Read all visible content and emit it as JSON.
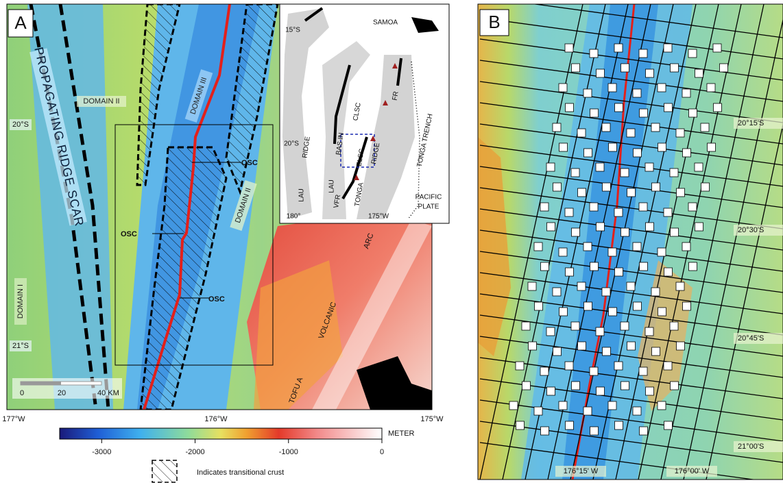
{
  "panel_a": {
    "label": "A",
    "propagating_scar": "PROPAGATING RIDGE SCAR",
    "domains": [
      "DOMAIN II",
      "DOMAIN III",
      "DOMAIN II",
      "DOMAIN I"
    ],
    "osc": [
      "OSC",
      "OSC",
      "OSC"
    ],
    "latitudes": [
      "20°S",
      "21°S"
    ],
    "longitudes": [
      "177°W",
      "176°W",
      "175°W"
    ],
    "scale": [
      "0",
      "20",
      "40 KM"
    ],
    "arc": [
      "TOFU A",
      "VOLCANIC",
      "ARC"
    ],
    "inset": {
      "samoa": "SAMOA",
      "latitudes": [
        "15°S",
        "20°S"
      ],
      "longitudes": [
        "180°",
        "175°W"
      ],
      "labels": [
        "LAU",
        "RIDGE",
        "LAU",
        "BAS IN",
        "CLSC",
        "ELSC",
        "VFR",
        "FR",
        "TONGA",
        "RIDGE",
        "TONGA TRENCH",
        "PACIFIC",
        "PLATE"
      ]
    }
  },
  "colorbar": {
    "label": "METER",
    "lim": [
      -3450,
      0
    ],
    "ticks": [
      -3000,
      -2000,
      -1000,
      0
    ]
  },
  "legend": "Indicates transitional crust",
  "panel_b": {
    "label": "B",
    "latitudes": [
      "20°15'S",
      "20°30'S",
      "20°45'S",
      "21°00'S"
    ],
    "longitudes": [
      "176°15' W",
      "176°00' W"
    ]
  }
}
